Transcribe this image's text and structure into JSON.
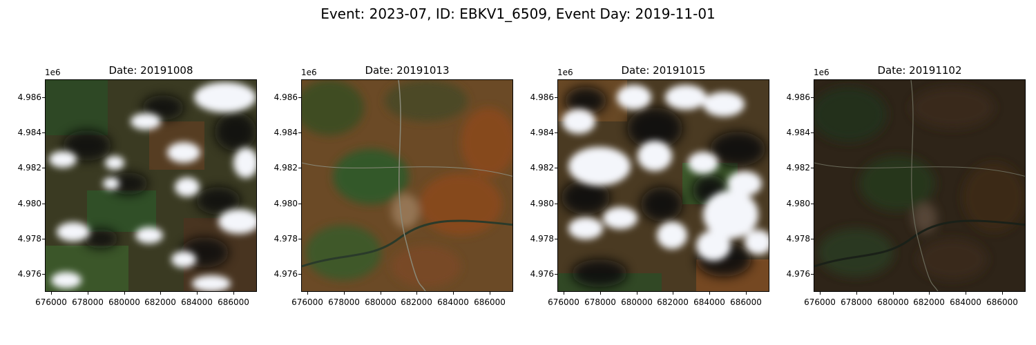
{
  "suptitle": "Event: 2023-07, ID: EBKV1_6509, Event Day: 2019-11-01",
  "axis_offset": "1e6",
  "y_ticks": [
    "4.986",
    "4.984",
    "4.982",
    "4.980",
    "4.978",
    "4.976"
  ],
  "x_ticks": [
    "676000",
    "678000",
    "680000",
    "682000",
    "684000",
    "686000"
  ],
  "panels": [
    {
      "title": "Date: 20191008",
      "cloud_cover": 0.35,
      "tone": "green-brown"
    },
    {
      "title": "Date: 20191013",
      "cloud_cover": 0.0,
      "tone": "orange-brown"
    },
    {
      "title": "Date: 20191015",
      "cloud_cover": 0.45,
      "tone": "green-brown"
    },
    {
      "title": "Date: 20191102",
      "cloud_cover": 0.0,
      "tone": "dark-brown"
    }
  ],
  "colors": {
    "cloud": "#f4f6fb",
    "shadow": "#0b0d0b",
    "forest": "#2d4a26",
    "soil": "#6b4a2a",
    "autumn": "#8a4a1e",
    "dark": "#2a2116"
  }
}
